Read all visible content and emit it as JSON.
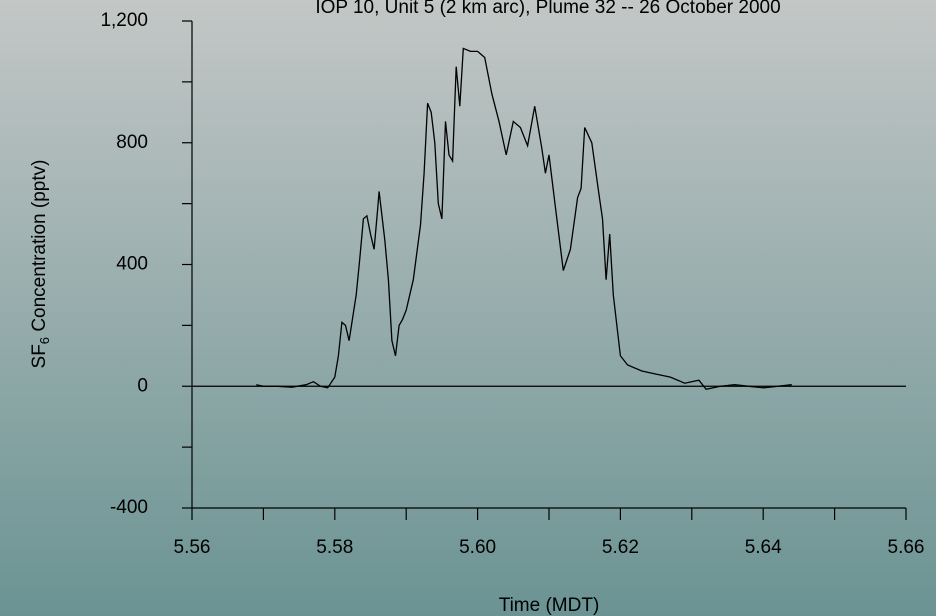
{
  "chart_data": {
    "type": "line",
    "title": "IOP 10, Unit 5 (2 km arc), Plume 32 -- 26 October 2000",
    "xlabel": "Time (MDT)",
    "ylabel_parts": [
      "SF",
      "6",
      " Concentration (pptv)"
    ],
    "xlim": [
      5.56,
      5.66
    ],
    "ylim": [
      -400,
      1200
    ],
    "xticks": [
      5.56,
      5.58,
      {
        "value": 5.6,
        "label": "5.60"
      },
      5.62,
      5.64,
      5.66
    ],
    "xminorticks": [
      5.57,
      5.59,
      5.61,
      5.63,
      5.65
    ],
    "yticks": [
      -400,
      0,
      400,
      800,
      {
        "value": 1200,
        "label": "1,200"
      }
    ],
    "yminorticks": [
      -200,
      200,
      600,
      1000
    ],
    "series": [
      {
        "color": "#000000",
        "x": [
          5.569,
          5.57,
          5.572,
          5.574,
          5.576,
          5.577,
          5.578,
          5.579,
          5.58,
          5.5805,
          5.581,
          5.5815,
          5.582,
          5.583,
          5.5835,
          5.584,
          5.5845,
          5.585,
          5.5855,
          5.586,
          5.5862,
          5.587,
          5.5875,
          5.588,
          5.5885,
          5.589,
          5.5895,
          5.59,
          5.591,
          5.592,
          5.5925,
          5.593,
          5.5935,
          5.594,
          5.5945,
          5.595,
          5.5955,
          5.596,
          5.5965,
          5.597,
          5.5975,
          5.598,
          5.599,
          5.6,
          5.601,
          5.602,
          5.603,
          5.604,
          5.605,
          5.606,
          5.607,
          5.608,
          5.609,
          5.6095,
          5.61,
          5.611,
          5.612,
          5.613,
          5.614,
          5.6145,
          5.615,
          5.616,
          5.617,
          5.6175,
          5.618,
          5.6185,
          5.619,
          5.62,
          5.621,
          5.623,
          5.625,
          5.627,
          5.629,
          5.631,
          5.632,
          5.634,
          5.636,
          5.638,
          5.64,
          5.642,
          5.644
        ],
        "values": [
          5,
          0,
          0,
          -3,
          5,
          15,
          0,
          -5,
          30,
          100,
          210,
          200,
          150,
          300,
          420,
          550,
          560,
          500,
          450,
          580,
          640,
          480,
          350,
          150,
          100,
          200,
          220,
          250,
          350,
          530,
          700,
          930,
          900,
          800,
          600,
          550,
          870,
          760,
          740,
          1050,
          920,
          1110,
          1100,
          1100,
          1080,
          960,
          870,
          760,
          870,
          850,
          790,
          920,
          780,
          700,
          760,
          570,
          380,
          450,
          620,
          650,
          850,
          800,
          630,
          550,
          350,
          500,
          300,
          100,
          70,
          50,
          40,
          30,
          10,
          20,
          -10,
          0,
          5,
          0,
          -5,
          0,
          5
        ]
      }
    ]
  }
}
